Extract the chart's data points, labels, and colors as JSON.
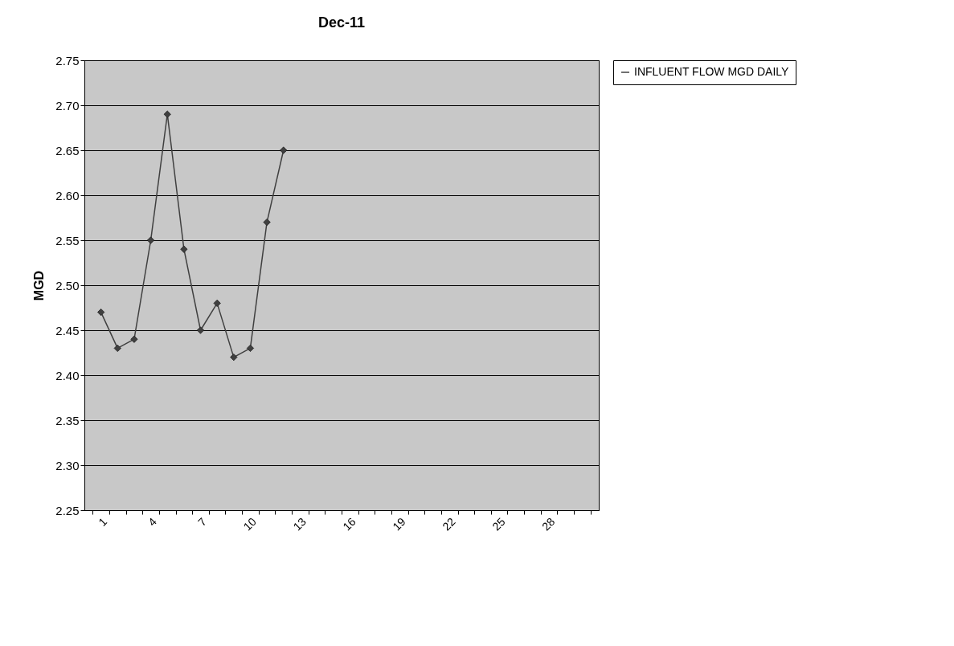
{
  "chart_data": {
    "type": "line",
    "title": "Dec-11",
    "ylabel": "MGD",
    "categories": [
      "1",
      null,
      null,
      "4",
      null,
      null,
      "7",
      null,
      null,
      "10",
      null,
      null,
      "13",
      null,
      null,
      "16",
      null,
      null,
      "19",
      null,
      null,
      "22",
      null,
      null,
      "25",
      null,
      null,
      "28",
      null,
      null
    ],
    "series": [
      {
        "name": "INFLUENT FLOW MGD DAILY",
        "color": "#404040",
        "values": [
          2.47,
          2.43,
          2.44,
          2.55,
          2.69,
          2.54,
          2.45,
          2.48,
          2.42,
          2.43,
          2.57,
          2.65,
          null,
          null,
          null,
          null,
          null,
          null,
          null,
          null,
          null,
          null,
          null,
          null,
          null,
          null,
          null,
          null,
          null,
          null
        ]
      }
    ],
    "ylim": [
      2.25,
      2.75
    ],
    "yticks": [
      2.25,
      {
        "value": 2.3,
        "label": "2.30"
      },
      2.35,
      {
        "value": 2.4,
        "label": "2.40"
      },
      2.45,
      {
        "value": 2.5,
        "label": "2.50"
      },
      2.55,
      {
        "value": 2.6,
        "label": "2.60"
      },
      2.65,
      {
        "value": 2.7,
        "label": "2.70"
      },
      2.75
    ],
    "grid": "y",
    "legend": "right",
    "marker": "diamond",
    "line_style": "solid"
  }
}
